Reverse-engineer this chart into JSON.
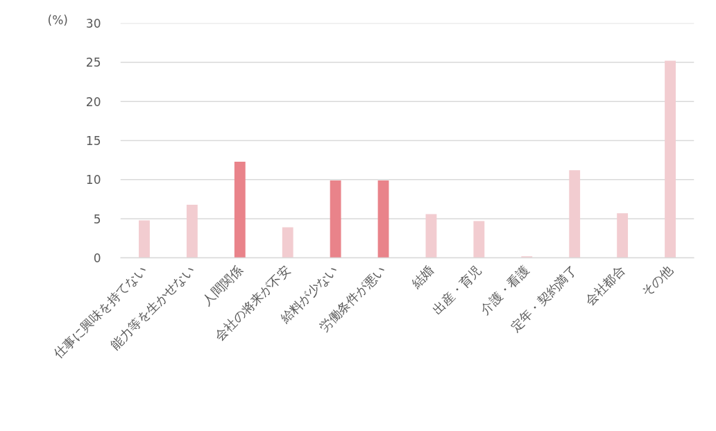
{
  "chart_data": {
    "type": "bar",
    "ylabel": "(%)",
    "categories": [
      "仕事に興味を持てない",
      "能力等を生かせない",
      "人間関係",
      "会社の将来が不安",
      "給料が少ない",
      "労働条件が悪い",
      "結婚",
      "出産・育児",
      "介護・看護",
      "定年・契約満了",
      "会社都合",
      "その他"
    ],
    "values": [
      4.8,
      6.8,
      12.3,
      3.9,
      9.9,
      9.9,
      5.6,
      4.7,
      0.2,
      11.2,
      5.7,
      25.2
    ],
    "colors": [
      "#f2ccd0",
      "#f2ccd0",
      "#e9838a",
      "#f2ccd0",
      "#e9838a",
      "#e9838a",
      "#f2ccd0",
      "#f2ccd0",
      "#f2ccd0",
      "#f2ccd0",
      "#f2ccd0",
      "#f2ccd0"
    ],
    "ylim": [
      0,
      30
    ],
    "yticks": [
      0,
      5,
      10,
      15,
      20,
      25,
      30
    ],
    "grid": "y"
  }
}
